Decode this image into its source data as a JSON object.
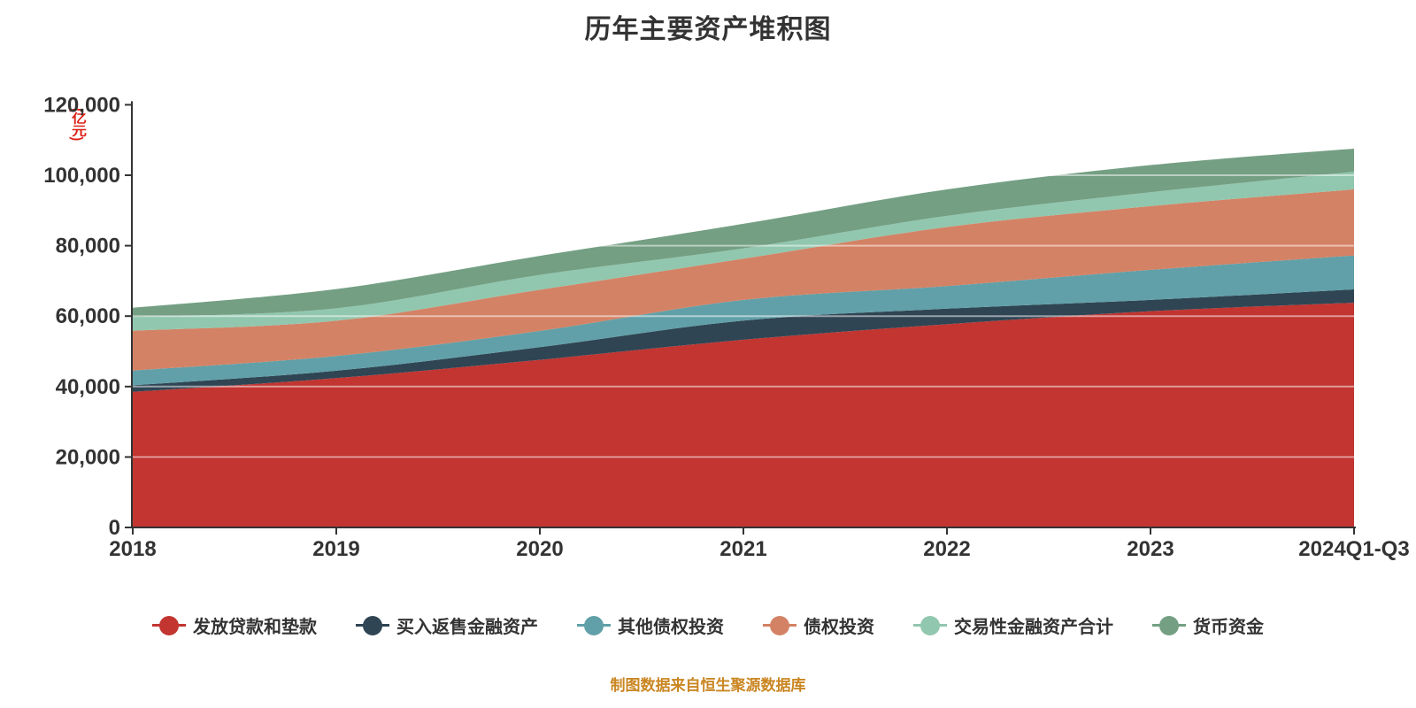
{
  "title": "历年主要资产堆积图",
  "caption": "制图数据来自恒生聚源数据库",
  "colors": {
    "title": "#333333",
    "axis": "#333333",
    "axis_text": "#333333",
    "caption": "#ca8622",
    "unit_label": "#dd1e14",
    "gridline": "rgba(255,255,255,0.5)",
    "background": "#ffffff"
  },
  "y_axis": {
    "unit": "(亿元)",
    "tick_values": [
      0,
      20000,
      40000,
      60000,
      80000,
      100000,
      120000
    ],
    "tick_labels": [
      "0",
      "20,000",
      "40,000",
      "60,000",
      "80,000",
      "100,000",
      "120,000"
    ]
  },
  "x_axis": {
    "categories": [
      "2018",
      "2019",
      "2020",
      "2021",
      "2022",
      "2023",
      "2024Q1-Q3"
    ]
  },
  "chart_data": {
    "type": "area",
    "stacked": true,
    "smooth": true,
    "grid": true,
    "legend_position": "bottom",
    "title": "历年主要资产堆积图",
    "ylabel": "(亿元)",
    "ylim": [
      0,
      120000
    ],
    "categories": [
      "2018",
      "2019",
      "2020",
      "2021",
      "2022",
      "2023",
      "2024Q1-Q3"
    ],
    "series": [
      {
        "name": "发放贷款和垫款",
        "color": "#c23531",
        "values": [
          38500,
          42400,
          47600,
          53300,
          57700,
          61400,
          63800
        ]
      },
      {
        "name": "买入返售金融资产",
        "color": "#2f4554",
        "values": [
          1850,
          2100,
          3600,
          5450,
          4400,
          3200,
          3800
        ]
      },
      {
        "name": "其他债权投资",
        "color": "#61a0a8",
        "values": [
          4200,
          4200,
          4600,
          5850,
          6450,
          8540,
          9600
        ]
      },
      {
        "name": "债权投资",
        "color": "#d48265",
        "values": [
          11300,
          10000,
          11700,
          11700,
          16750,
          18100,
          18800
        ]
      },
      {
        "name": "交易性金融资产合计",
        "color": "#91c7ae",
        "values": [
          3900,
          3500,
          4200,
          2950,
          3160,
          3940,
          5000
        ]
      },
      {
        "name": "货币资金",
        "color": "#749f83",
        "values": [
          2600,
          5500,
          5400,
          6950,
          7530,
          7700,
          6550
        ]
      }
    ]
  }
}
